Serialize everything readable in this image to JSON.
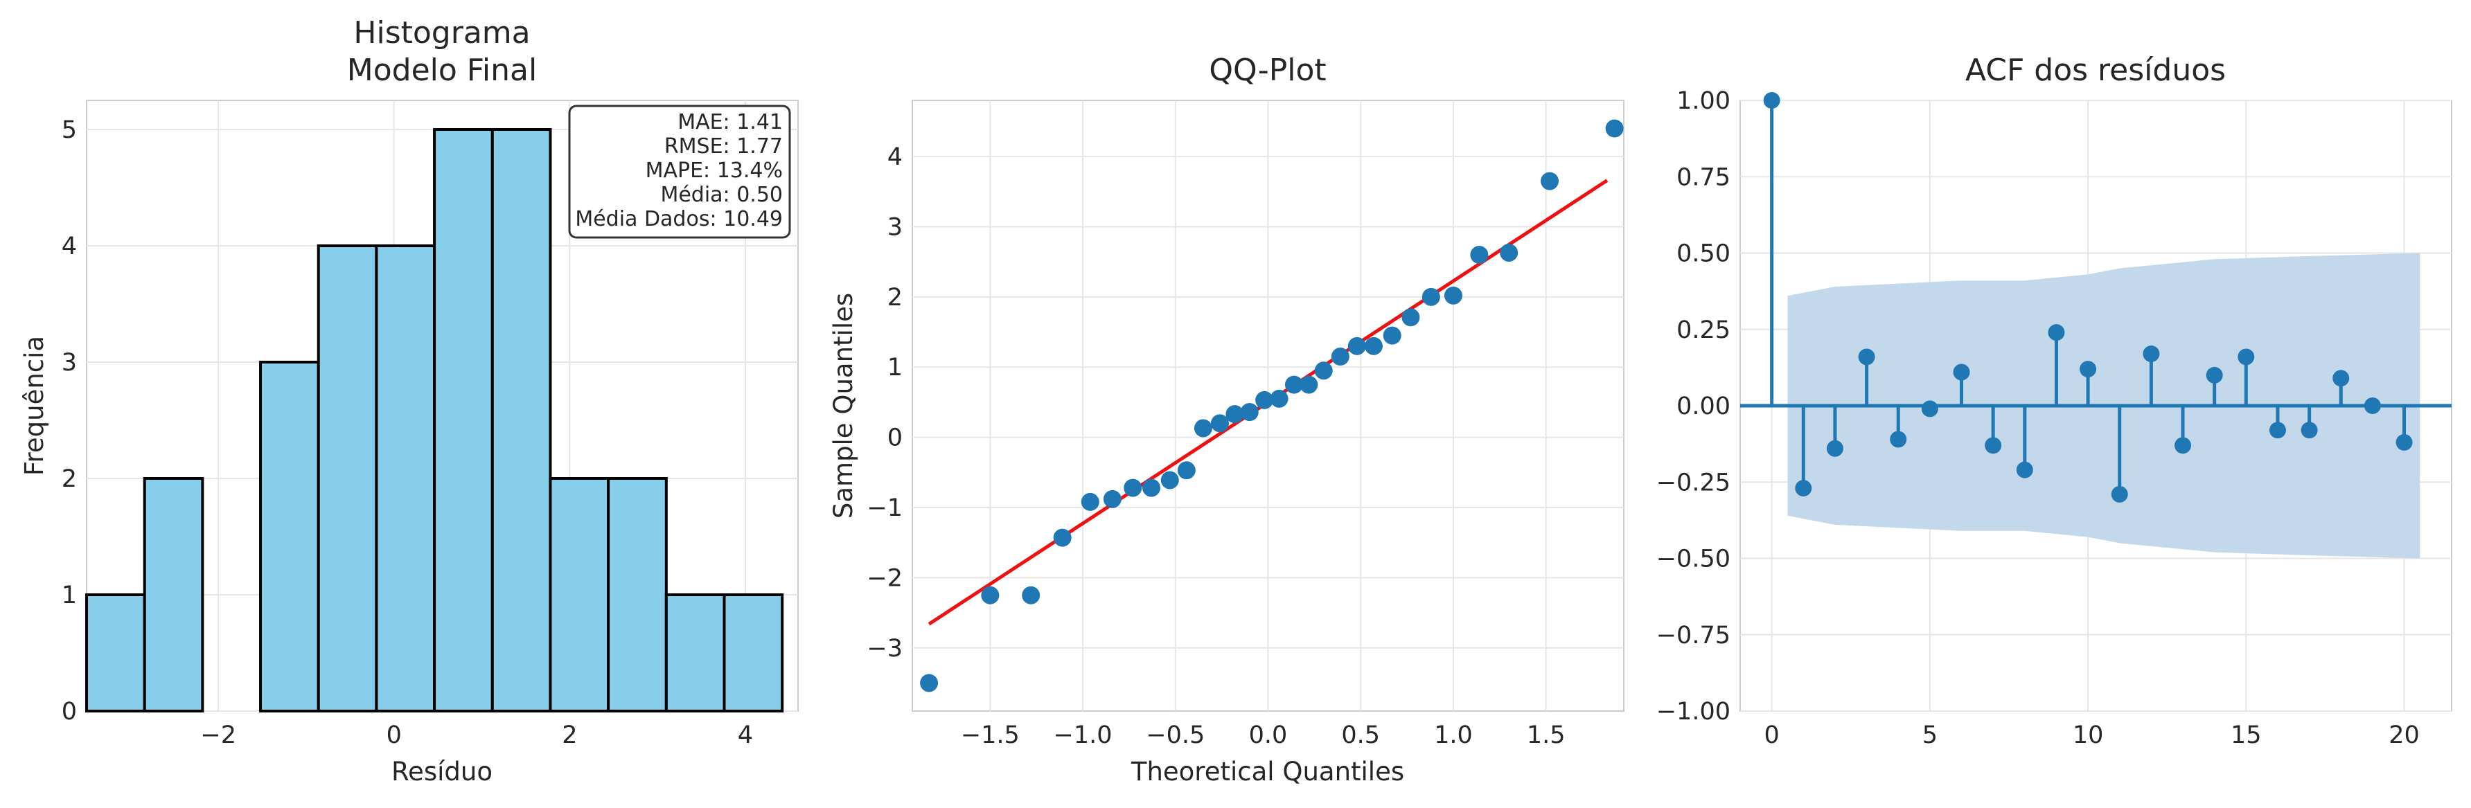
{
  "chart_data": [
    {
      "type": "bar",
      "title": "Histograma\nModelo Final",
      "xlabel": "Resíduo",
      "ylabel": "Frequência",
      "xlim": [
        -3.5,
        4.6
      ],
      "ylim": [
        0,
        5.25
      ],
      "xticks": [
        -2,
        0,
        2,
        4
      ],
      "yticks": [
        0,
        1,
        2,
        3,
        4,
        5
      ],
      "bin_edges": [
        -3.5,
        -2.84,
        -2.18,
        -1.52,
        -0.86,
        -0.2,
        0.46,
        1.12,
        1.78,
        2.44,
        3.1,
        3.76,
        4.42
      ],
      "values": [
        1,
        2,
        0,
        3,
        4,
        4,
        5,
        5,
        2,
        2,
        1,
        1
      ],
      "bar_color": "#87ceeb",
      "edge_color": "#000000",
      "grid": true,
      "stats_box": {
        "placement": "top-right",
        "lines": [
          "MAE: 1.41",
          "RMSE: 1.77",
          "MAPE: 13.4%",
          "Média: 0.50",
          "Média Dados: 10.49"
        ]
      }
    },
    {
      "type": "scatter",
      "title": "QQ-Plot",
      "xlabel": "Theoretical Quantiles",
      "ylabel": "Sample Quantiles",
      "xlim": [
        -1.92,
        1.92
      ],
      "ylim": [
        -3.9,
        4.8
      ],
      "xticks": [
        -1.5,
        -1.0,
        -0.5,
        0.0,
        0.5,
        1.0,
        1.5
      ],
      "yticks": [
        -3,
        -2,
        -1,
        0,
        1,
        2,
        3,
        4
      ],
      "point_color": "#1f77b4",
      "line_color": "#ee1111",
      "grid": true,
      "points": [
        [
          -1.83,
          -3.5
        ],
        [
          -1.5,
          -2.25
        ],
        [
          -1.28,
          -2.25
        ],
        [
          -1.11,
          -1.43
        ],
        [
          -0.96,
          -0.92
        ],
        [
          -0.84,
          -0.88
        ],
        [
          -0.73,
          -0.72
        ],
        [
          -0.63,
          -0.72
        ],
        [
          -0.53,
          -0.61
        ],
        [
          -0.44,
          -0.47
        ],
        [
          -0.35,
          0.13
        ],
        [
          -0.26,
          0.2
        ],
        [
          -0.18,
          0.33
        ],
        [
          -0.1,
          0.36
        ],
        [
          -0.02,
          0.53
        ],
        [
          0.06,
          0.55
        ],
        [
          0.14,
          0.75
        ],
        [
          0.22,
          0.75
        ],
        [
          0.3,
          0.95
        ],
        [
          0.39,
          1.15
        ],
        [
          0.48,
          1.3
        ],
        [
          0.57,
          1.3
        ],
        [
          0.67,
          1.45
        ],
        [
          0.77,
          1.71
        ],
        [
          0.88,
          2.0
        ],
        [
          1.0,
          2.02
        ],
        [
          1.14,
          2.6
        ],
        [
          1.3,
          2.63
        ],
        [
          1.52,
          3.65
        ],
        [
          1.87,
          4.4
        ]
      ],
      "fit_line": [
        [
          -1.83,
          -2.66
        ],
        [
          1.83,
          3.66
        ]
      ]
    },
    {
      "type": "stem",
      "title": "ACF dos resíduos",
      "xlabel": "",
      "ylabel": "",
      "xlim": [
        -1,
        21.5
      ],
      "ylim": [
        -1.0,
        1.0
      ],
      "xticks": [
        0,
        5,
        10,
        15,
        20
      ],
      "yticks": [
        -1.0,
        -0.75,
        -0.5,
        -0.25,
        0.0,
        0.25,
        0.5,
        0.75,
        1.0
      ],
      "ytick_labels": [
        "−1.00",
        "−0.75",
        "−0.50",
        "−0.25",
        "0.00",
        "0.25",
        "0.50",
        "0.75",
        "1.00"
      ],
      "stem_color": "#1f77b4",
      "band_color": "#c3d8eb",
      "grid": true,
      "lags": [
        0,
        1,
        2,
        3,
        4,
        5,
        6,
        7,
        8,
        9,
        10,
        11,
        12,
        13,
        14,
        15,
        16,
        17,
        18,
        19,
        20
      ],
      "values": [
        1.0,
        -0.27,
        -0.14,
        0.16,
        -0.11,
        -0.01,
        0.11,
        -0.13,
        -0.21,
        0.24,
        0.12,
        -0.29,
        0.17,
        -0.13,
        0.1,
        0.16,
        -0.08,
        -0.08,
        0.09,
        0.0,
        -0.12
      ],
      "conf_band": {
        "lag_start": 0.5,
        "lag_end": 20.5,
        "upper": [
          0.36,
          0.39,
          0.4,
          0.41,
          0.41,
          0.42,
          0.43,
          0.45,
          0.46,
          0.48,
          0.49,
          0.5
        ],
        "upper_lags": [
          0.5,
          2,
          4,
          6,
          8,
          9,
          10,
          11,
          12,
          14,
          17,
          20.5
        ]
      }
    }
  ]
}
